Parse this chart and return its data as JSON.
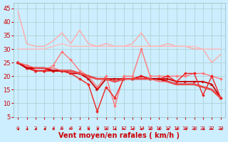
{
  "bg_color": "#cceeff",
  "grid_color": "#aacccc",
  "xlabel": "Vent moyen/en rafales ( km/h )",
  "xlabel_color": "#cc0000",
  "xlabel_fontsize": 7,
  "tick_color": "#cc0000",
  "ytick_fontsize": 6,
  "xtick_fontsize": 5,
  "ylim": [
    5,
    47
  ],
  "yticks": [
    5,
    10,
    15,
    20,
    25,
    30,
    35,
    40,
    45
  ],
  "xlim": [
    -0.5,
    23.5
  ],
  "xticks": [
    0,
    1,
    2,
    3,
    4,
    5,
    6,
    7,
    8,
    9,
    10,
    11,
    12,
    13,
    14,
    15,
    16,
    17,
    18,
    19,
    20,
    21,
    22,
    23
  ],
  "series": [
    {
      "x": [
        0,
        1,
        2,
        3,
        4,
        5,
        6,
        7,
        8,
        9,
        10,
        11,
        12,
        13,
        14,
        15,
        16,
        17,
        18,
        19,
        20,
        21,
        22,
        23
      ],
      "y": [
        44,
        32,
        31,
        31,
        33,
        36,
        32,
        37,
        32,
        31,
        32,
        31,
        31,
        32,
        36,
        31,
        31,
        32,
        31,
        31,
        30,
        30,
        25,
        28
      ],
      "color": "#ffaaaa",
      "lw": 1.0,
      "marker": null,
      "ms": 0
    },
    {
      "x": [
        0,
        1,
        2,
        3,
        4,
        5,
        6,
        7,
        8,
        9,
        10,
        11,
        12,
        13,
        14,
        15,
        16,
        17,
        18,
        19,
        20,
        21,
        22,
        23
      ],
      "y": [
        30,
        30,
        30,
        30,
        31,
        32,
        31,
        31,
        31,
        31,
        31,
        31,
        31,
        31,
        31,
        31,
        31,
        31,
        31,
        31,
        31,
        30,
        30,
        30
      ],
      "color": "#ffbbbb",
      "lw": 1.0,
      "marker": null,
      "ms": 0
    },
    {
      "x": [
        0,
        1,
        2,
        3,
        4,
        5,
        6,
        7,
        8,
        9,
        10,
        11,
        12,
        13,
        14,
        15,
        16,
        17,
        18,
        19,
        20,
        21,
        22,
        23
      ],
      "y": [
        25,
        24,
        22,
        22,
        24,
        29,
        26,
        22,
        20,
        16,
        20,
        9,
        20,
        20,
        30,
        20,
        20,
        20,
        20,
        20,
        21,
        21,
        20,
        19
      ],
      "color": "#ff7777",
      "lw": 1.0,
      "marker": "D",
      "ms": 2.0
    },
    {
      "x": [
        0,
        1,
        2,
        3,
        4,
        5,
        6,
        7,
        8,
        9,
        10,
        11,
        12,
        13,
        14,
        15,
        16,
        17,
        18,
        19,
        20,
        21,
        22,
        23
      ],
      "y": [
        25,
        23,
        22,
        22,
        22,
        22,
        21,
        21,
        19,
        15,
        19,
        19,
        19,
        19,
        20,
        19,
        19,
        19,
        18,
        18,
        18,
        18,
        17,
        12
      ],
      "color": "#cc0000",
      "lw": 1.3,
      "marker": ">",
      "ms": 2.5
    },
    {
      "x": [
        0,
        1,
        2,
        3,
        4,
        5,
        6,
        7,
        8,
        9,
        10,
        11,
        12,
        13,
        14,
        15,
        16,
        17,
        18,
        19,
        20,
        21,
        22,
        23
      ],
      "y": [
        25,
        23,
        22,
        22,
        22,
        22,
        21,
        19,
        17,
        7,
        16,
        12,
        19,
        19,
        20,
        19,
        19,
        20,
        18,
        21,
        21,
        13,
        20,
        12
      ],
      "color": "#ee2222",
      "lw": 1.0,
      "marker": "D",
      "ms": 2.0
    },
    {
      "x": [
        0,
        1,
        2,
        3,
        4,
        5,
        6,
        7,
        8,
        9,
        10,
        11,
        12,
        13,
        14,
        15,
        16,
        17,
        18,
        19,
        20,
        21,
        22,
        23
      ],
      "y": [
        25,
        23,
        23,
        23,
        22,
        22,
        22,
        21,
        20,
        19,
        19,
        18,
        19,
        19,
        19,
        19,
        19,
        18,
        17,
        17,
        17,
        16,
        15,
        12
      ],
      "color": "#cc0000",
      "lw": 1.8,
      "marker": null,
      "ms": 0
    },
    {
      "x": [
        0,
        1,
        2,
        3,
        4,
        5,
        6,
        7,
        8,
        9,
        10,
        11,
        12,
        13,
        14,
        15,
        16,
        17,
        18,
        19,
        20,
        21,
        22,
        23
      ],
      "y": [
        25,
        24,
        23,
        23,
        23,
        22,
        22,
        21,
        20,
        19,
        19,
        18,
        19,
        19,
        19,
        19,
        18,
        18,
        17,
        17,
        17,
        16,
        15,
        12
      ],
      "color": "#ff6666",
      "lw": 1.0,
      "marker": null,
      "ms": 0
    }
  ],
  "arrow_directions": [
    1,
    1,
    1,
    1,
    1,
    0,
    0,
    1,
    1,
    1,
    1,
    1,
    0,
    1,
    1,
    1,
    1,
    1,
    1,
    1,
    1,
    1,
    0,
    1
  ]
}
